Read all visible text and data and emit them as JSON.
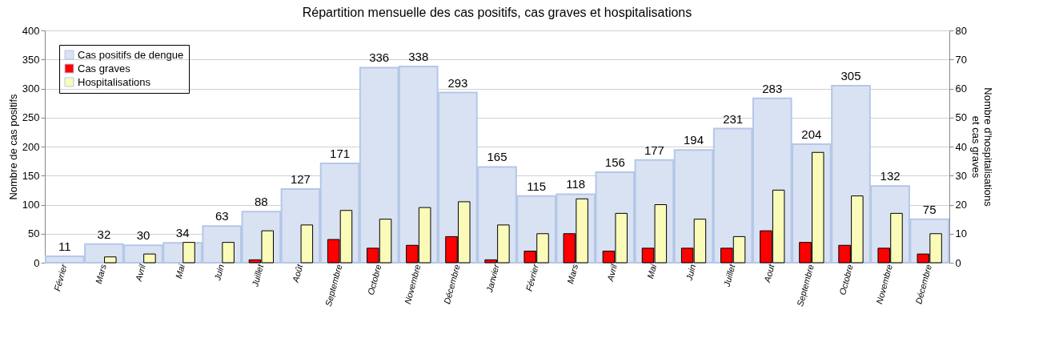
{
  "chart_data": {
    "type": "bar",
    "title": "Répartition mensuelle des cas positifs, cas graves et hospitalisations",
    "categories": [
      "Février",
      "Mars",
      "Avril",
      "Mai",
      "Juin",
      "Juillet",
      "Août",
      "Septembre",
      "Octobre",
      "Novembre",
      "Décembre",
      "Janvier",
      "Février",
      "Mars",
      "Avril",
      "Mai",
      "Juin",
      "Juillet",
      "Aout",
      "Septembre",
      "Octobre",
      "Novembre",
      "Décembre"
    ],
    "series": [
      {
        "name": "Cas positifs de dengue",
        "color": "#d9e2f3",
        "values": [
          11,
          32,
          30,
          34,
          63,
          88,
          127,
          171,
          336,
          338,
          293,
          165,
          115,
          118,
          156,
          177,
          194,
          231,
          283,
          204,
          305,
          132,
          75
        ],
        "value_labels": [
          "11",
          "32",
          "30",
          "34",
          "63",
          "88",
          "127",
          "171",
          "336",
          "338",
          "293",
          "165",
          "115",
          "118",
          "156",
          "177",
          "194",
          "231",
          "283",
          "204",
          "305",
          "132",
          "75"
        ]
      },
      {
        "name": "Cas graves",
        "color": "#ff0000",
        "axis": "y2",
        "values": [
          0,
          0,
          0,
          0,
          0,
          1,
          0,
          8,
          5,
          6,
          9,
          1,
          4,
          10,
          4,
          5,
          5,
          5,
          11,
          7,
          6,
          5,
          3
        ]
      },
      {
        "name": "Hospitalisations",
        "color": "#fafbb8",
        "axis": "y2",
        "values": [
          0,
          2,
          3,
          7,
          7,
          11,
          13,
          18,
          15,
          19,
          21,
          13,
          10,
          22,
          17,
          20,
          15,
          9,
          25,
          38,
          23,
          17,
          10
        ]
      }
    ],
    "ylabel": "Nombre de cas positifs",
    "y2label": "Nombre d'hospitalisations\net cas graves",
    "ylim": [
      0,
      400
    ],
    "yticks": [
      0,
      50,
      100,
      150,
      200,
      250,
      300,
      350,
      400
    ],
    "y2lim": [
      0,
      80
    ],
    "y2ticks": [
      0,
      10,
      20,
      30,
      40,
      50,
      60,
      70,
      80
    ],
    "grid": "y",
    "legend": "top left"
  }
}
